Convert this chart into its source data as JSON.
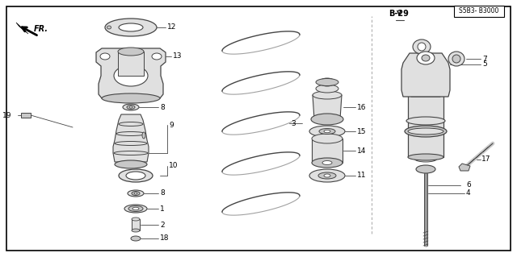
{
  "bg_color": "#ffffff",
  "lc": "#444444",
  "fill_light": "#e0e0e0",
  "fill_mid": "#c8c8c8",
  "fill_dark": "#aaaaaa",
  "ref_B29": "B-29",
  "ref_code": "S5B3- B3000",
  "fr_label": "FR."
}
